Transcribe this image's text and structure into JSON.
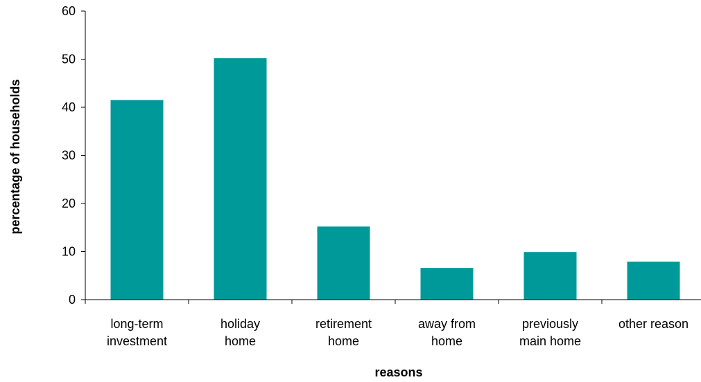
{
  "chart_data": {
    "type": "bar",
    "categories": [
      [
        "long-term",
        "investment"
      ],
      [
        "holiday",
        "home"
      ],
      [
        "retirement",
        "home"
      ],
      [
        "away from",
        "home"
      ],
      [
        "previously",
        "main home"
      ],
      [
        "other reason"
      ]
    ],
    "values": [
      41.5,
      50.2,
      15.2,
      6.6,
      9.9,
      7.9
    ],
    "ylim": [
      0,
      60
    ],
    "yticks": [
      "0",
      "10",
      "20",
      "30",
      "40",
      "50",
      "60"
    ],
    "xlabel": "reasons",
    "ylabel": "percentage of households",
    "bar_color": "#009999",
    "grid": false,
    "legend": "none"
  }
}
